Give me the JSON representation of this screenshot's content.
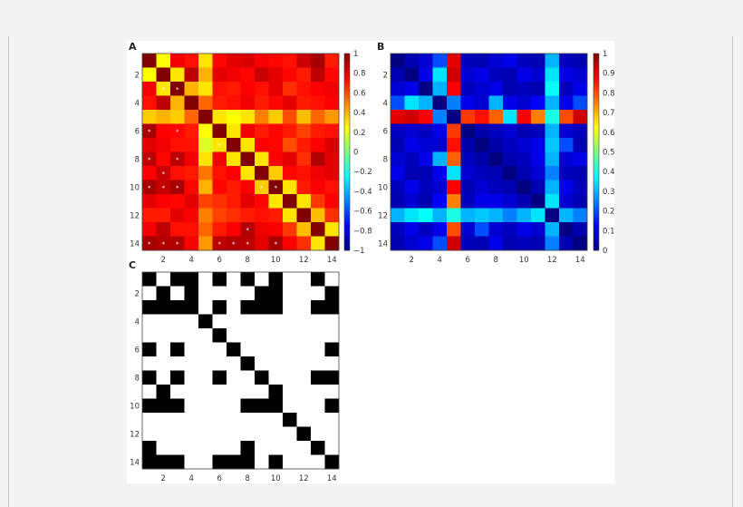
{
  "chart_data": [
    {
      "type": "heatmap",
      "panel": "A",
      "title": "",
      "xlabel": "",
      "ylabel": "",
      "x_ticks": [
        "2",
        "4",
        "6",
        "8",
        "10",
        "12",
        "14"
      ],
      "y_ticks": [
        "2",
        "4",
        "6",
        "8",
        "10",
        "12",
        "14"
      ],
      "colorbar": {
        "range": [
          -1,
          1
        ],
        "ticks": [
          "1",
          "0.8",
          "0.6",
          "0.4",
          "0.2",
          "0",
          "−0.2",
          "−0.4",
          "−0.6",
          "−0.8",
          "−1"
        ],
        "colormap": "jet"
      },
      "star_marker": "*",
      "matrix": [
        [
          1.0,
          0.25,
          0.78,
          0.72,
          0.3,
          0.74,
          0.8,
          0.82,
          0.77,
          0.74,
          0.72,
          0.85,
          0.92,
          0.7
        ],
        [
          0.25,
          1.0,
          0.3,
          0.88,
          0.4,
          0.8,
          0.78,
          0.74,
          0.86,
          0.8,
          0.74,
          0.7,
          0.88,
          0.74
        ],
        [
          0.78,
          0.3,
          1.0,
          0.4,
          0.3,
          0.72,
          0.7,
          0.76,
          0.72,
          0.8,
          0.66,
          0.72,
          0.76,
          0.78
        ],
        [
          0.72,
          0.88,
          0.4,
          1.0,
          0.55,
          0.7,
          0.72,
          0.78,
          0.7,
          0.74,
          0.8,
          0.7,
          0.72,
          0.76
        ],
        [
          0.35,
          0.4,
          0.35,
          0.55,
          1.0,
          0.3,
          0.25,
          0.3,
          0.5,
          0.35,
          0.6,
          0.38,
          0.55,
          0.45
        ],
        [
          0.92,
          0.75,
          0.74,
          0.7,
          0.25,
          1.0,
          0.3,
          0.78,
          0.7,
          0.74,
          0.7,
          0.62,
          0.7,
          0.72
        ],
        [
          0.8,
          0.78,
          0.72,
          0.72,
          0.18,
          0.3,
          1.0,
          0.3,
          0.76,
          0.74,
          0.6,
          0.7,
          0.75,
          0.82
        ],
        [
          0.88,
          0.74,
          0.88,
          0.78,
          0.3,
          0.78,
          0.3,
          1.0,
          0.3,
          0.76,
          0.8,
          0.66,
          0.9,
          0.8
        ],
        [
          0.76,
          0.86,
          0.72,
          0.7,
          0.52,
          0.72,
          0.76,
          0.3,
          1.0,
          0.35,
          0.74,
          0.72,
          0.78,
          0.8
        ],
        [
          0.92,
          0.86,
          0.92,
          0.74,
          0.4,
          0.74,
          0.7,
          0.76,
          0.35,
          1.0,
          0.3,
          0.7,
          0.76,
          0.72
        ],
        [
          0.8,
          0.76,
          0.74,
          0.8,
          0.62,
          0.66,
          0.7,
          0.8,
          0.74,
          0.3,
          1.0,
          0.3,
          0.64,
          0.76
        ],
        [
          0.7,
          0.7,
          0.8,
          0.76,
          0.5,
          0.62,
          0.66,
          0.7,
          0.72,
          0.7,
          0.3,
          1.0,
          0.38,
          0.66
        ],
        [
          0.78,
          0.88,
          0.72,
          0.72,
          0.55,
          0.7,
          0.76,
          0.9,
          0.78,
          0.76,
          0.64,
          0.38,
          1.0,
          0.3
        ],
        [
          0.92,
          0.9,
          0.9,
          0.76,
          0.45,
          0.88,
          0.9,
          0.88,
          0.8,
          0.92,
          0.76,
          0.66,
          0.3,
          1.0
        ]
      ],
      "stars": [
        [
          2,
          1
        ],
        [
          2,
          2
        ],
        [
          5,
          0
        ],
        [
          5,
          2
        ],
        [
          7,
          0
        ],
        [
          7,
          2
        ],
        [
          6,
          5
        ],
        [
          9,
          0
        ],
        [
          9,
          1
        ],
        [
          9,
          2
        ],
        [
          8,
          1
        ],
        [
          9,
          8
        ],
        [
          9,
          9
        ],
        [
          12,
          7
        ],
        [
          13,
          0
        ],
        [
          13,
          1
        ],
        [
          13,
          2
        ],
        [
          13,
          5
        ],
        [
          13,
          6
        ],
        [
          13,
          7
        ],
        [
          13,
          9
        ]
      ]
    },
    {
      "type": "heatmap",
      "panel": "B",
      "title": "",
      "xlabel": "",
      "ylabel": "",
      "x_ticks": [
        "2",
        "4",
        "6",
        "8",
        "10",
        "12",
        "14"
      ],
      "y_ticks": [
        "2",
        "4",
        "6",
        "8",
        "10",
        "12",
        "14"
      ],
      "colorbar": {
        "range": [
          0,
          1
        ],
        "ticks": [
          "1",
          "0.9",
          "0.8",
          "0.7",
          "0.6",
          "0.5",
          "0.4",
          "0.3",
          "0.2",
          "0.1",
          "0"
        ],
        "colormap": "jet"
      },
      "matrix": [
        [
          0.0,
          0.05,
          0.08,
          0.2,
          0.9,
          0.06,
          0.05,
          0.08,
          0.1,
          0.06,
          0.05,
          0.3,
          0.06,
          0.05
        ],
        [
          0.05,
          0.0,
          0.1,
          0.35,
          0.92,
          0.08,
          0.1,
          0.06,
          0.05,
          0.1,
          0.08,
          0.35,
          0.1,
          0.08
        ],
        [
          0.08,
          0.1,
          0.0,
          0.3,
          0.88,
          0.06,
          0.08,
          0.1,
          0.05,
          0.06,
          0.05,
          0.38,
          0.06,
          0.1
        ],
        [
          0.2,
          0.35,
          0.3,
          0.0,
          0.25,
          0.1,
          0.08,
          0.3,
          0.1,
          0.08,
          0.12,
          0.3,
          0.1,
          0.2
        ],
        [
          0.9,
          0.92,
          0.88,
          0.25,
          0.0,
          0.82,
          0.86,
          0.78,
          0.35,
          0.88,
          0.75,
          0.4,
          0.8,
          0.92
        ],
        [
          0.06,
          0.08,
          0.06,
          0.1,
          0.82,
          0.0,
          0.04,
          0.06,
          0.08,
          0.05,
          0.06,
          0.3,
          0.08,
          0.06
        ],
        [
          0.05,
          0.1,
          0.08,
          0.08,
          0.86,
          0.04,
          0.0,
          0.04,
          0.06,
          0.08,
          0.1,
          0.32,
          0.2,
          0.05
        ],
        [
          0.08,
          0.06,
          0.1,
          0.3,
          0.78,
          0.06,
          0.04,
          0.0,
          0.05,
          0.06,
          0.1,
          0.3,
          0.08,
          0.1
        ],
        [
          0.1,
          0.05,
          0.05,
          0.1,
          0.35,
          0.08,
          0.06,
          0.05,
          0.0,
          0.05,
          0.08,
          0.25,
          0.06,
          0.05
        ],
        [
          0.06,
          0.1,
          0.06,
          0.08,
          0.88,
          0.05,
          0.08,
          0.06,
          0.05,
          0.0,
          0.05,
          0.3,
          0.1,
          0.06
        ],
        [
          0.05,
          0.08,
          0.05,
          0.12,
          0.75,
          0.06,
          0.1,
          0.1,
          0.08,
          0.05,
          0.0,
          0.35,
          0.08,
          0.05
        ],
        [
          0.3,
          0.35,
          0.38,
          0.3,
          0.4,
          0.3,
          0.32,
          0.3,
          0.25,
          0.3,
          0.35,
          0.0,
          0.3,
          0.25
        ],
        [
          0.06,
          0.1,
          0.06,
          0.1,
          0.8,
          0.08,
          0.2,
          0.08,
          0.06,
          0.1,
          0.08,
          0.3,
          0.0,
          0.05
        ],
        [
          0.05,
          0.08,
          0.1,
          0.2,
          0.92,
          0.06,
          0.05,
          0.1,
          0.05,
          0.06,
          0.05,
          0.25,
          0.05,
          0.0
        ]
      ]
    },
    {
      "type": "heatmap",
      "panel": "C",
      "title": "",
      "xlabel": "",
      "ylabel": "",
      "x_ticks": [
        "2",
        "4",
        "6",
        "8",
        "10",
        "12",
        "14"
      ],
      "y_ticks": [
        "2",
        "4",
        "6",
        "8",
        "10",
        "12",
        "14"
      ],
      "binary": true,
      "matrix": [
        [
          1,
          0,
          1,
          1,
          0,
          1,
          0,
          1,
          0,
          1,
          0,
          0,
          1,
          0
        ],
        [
          0,
          1,
          0,
          1,
          0,
          0,
          0,
          0,
          1,
          1,
          0,
          0,
          0,
          1
        ],
        [
          1,
          1,
          1,
          1,
          0,
          1,
          0,
          1,
          1,
          1,
          0,
          0,
          1,
          1
        ],
        [
          0,
          0,
          0,
          0,
          1,
          0,
          0,
          0,
          0,
          0,
          0,
          0,
          0,
          0
        ],
        [
          0,
          0,
          0,
          0,
          0,
          1,
          0,
          0,
          0,
          0,
          0,
          0,
          0,
          0
        ],
        [
          1,
          0,
          1,
          0,
          0,
          0,
          1,
          0,
          0,
          0,
          0,
          0,
          0,
          1
        ],
        [
          0,
          0,
          0,
          0,
          0,
          0,
          0,
          1,
          0,
          0,
          0,
          0,
          0,
          0
        ],
        [
          1,
          0,
          1,
          0,
          0,
          1,
          0,
          0,
          1,
          0,
          0,
          0,
          1,
          1
        ],
        [
          0,
          1,
          0,
          0,
          0,
          0,
          0,
          0,
          0,
          1,
          0,
          0,
          0,
          0
        ],
        [
          1,
          1,
          1,
          0,
          0,
          0,
          0,
          1,
          1,
          1,
          0,
          0,
          0,
          1
        ],
        [
          0,
          0,
          0,
          0,
          0,
          0,
          0,
          0,
          0,
          0,
          1,
          0,
          0,
          0
        ],
        [
          0,
          0,
          0,
          0,
          0,
          0,
          0,
          0,
          0,
          0,
          0,
          1,
          0,
          0
        ],
        [
          1,
          0,
          0,
          0,
          0,
          0,
          0,
          1,
          0,
          0,
          0,
          0,
          1,
          0
        ],
        [
          1,
          1,
          1,
          0,
          0,
          1,
          1,
          1,
          0,
          1,
          0,
          0,
          0,
          1
        ]
      ]
    }
  ]
}
